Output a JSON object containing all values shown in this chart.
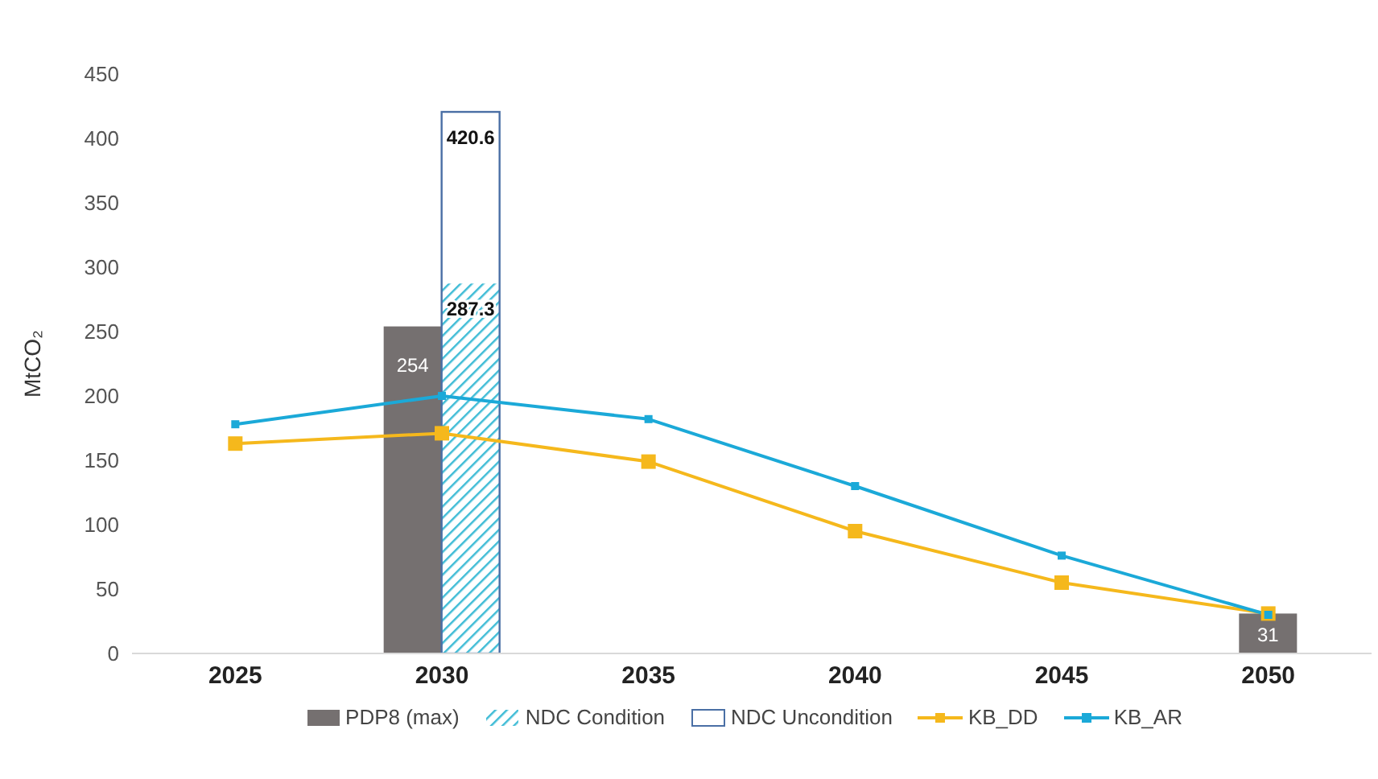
{
  "chart_data": {
    "type": "bar",
    "ylabel": "MtCO₂",
    "categories": [
      "2025",
      "2030",
      "2035",
      "2040",
      "2045",
      "2050"
    ],
    "ylim": [
      0,
      450
    ],
    "yticks": [
      0,
      50,
      100,
      150,
      200,
      250,
      300,
      350,
      400,
      450
    ],
    "grid": false,
    "legend": "bottom",
    "series": [
      {
        "name": "PDP8 (max)",
        "color": "#757070",
        "values": [
          null,
          254,
          null,
          null,
          null,
          31
        ],
        "value_labels": [
          null,
          "254",
          null,
          null,
          null,
          "31"
        ]
      },
      {
        "name": "NDC Condition",
        "color": "#3fbcd6",
        "values": [
          null,
          287.3,
          null,
          null,
          null,
          null
        ],
        "value_labels": [
          null,
          "287.3",
          null,
          null,
          null,
          null
        ]
      },
      {
        "name": "NDC Uncondition",
        "color": "#4a6fa5",
        "values": [
          null,
          420.6,
          null,
          null,
          null,
          null
        ],
        "value_labels": [
          null,
          "420.6",
          null,
          null,
          null,
          null
        ]
      },
      {
        "name": "KB_DD",
        "type": "line",
        "color": "#f5b81c",
        "marker": "square",
        "values": [
          163,
          171,
          149,
          95,
          55,
          31
        ]
      },
      {
        "name": "KB_AR",
        "type": "line",
        "color": "#1ba9d8",
        "marker": "square",
        "values": [
          178,
          200,
          182,
          130,
          76,
          30
        ]
      }
    ]
  }
}
